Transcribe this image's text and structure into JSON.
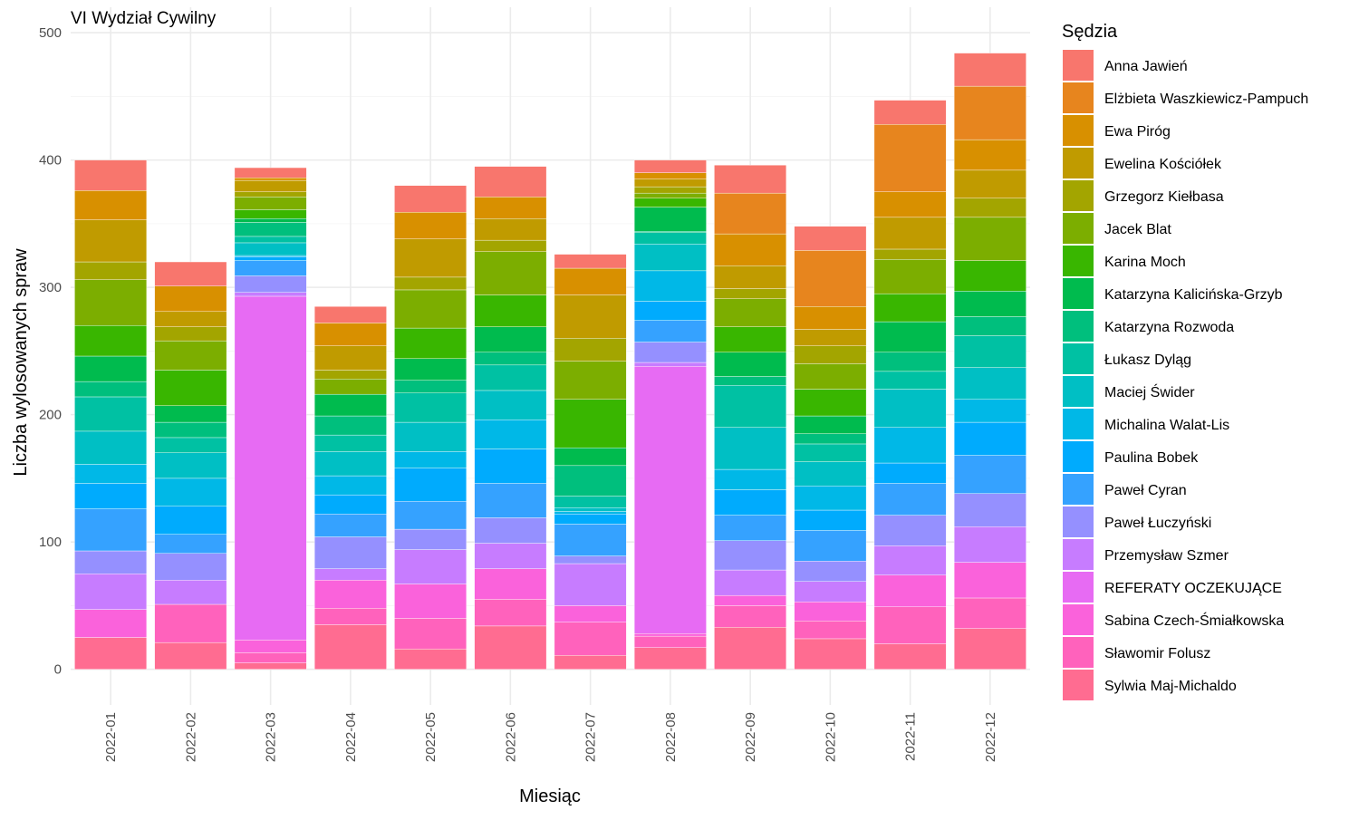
{
  "chart_data": {
    "type": "bar",
    "stacked": true,
    "title": "VI Wydział Cywilny",
    "xlabel": "Miesiąc",
    "ylabel": "Liczba wylosowanych spraw",
    "ylim": [
      -28,
      520
    ],
    "yticks": [
      0,
      100,
      200,
      300,
      400,
      500
    ],
    "grid": true,
    "legend_title": "Sędzia",
    "legend_position": "right",
    "categories": [
      "2022-01",
      "2022-02",
      "2022-03",
      "2022-04",
      "2022-05",
      "2022-06",
      "2022-07",
      "2022-08",
      "2022-09",
      "2022-10",
      "2022-11",
      "2022-12"
    ],
    "series": [
      {
        "name": "Anna Jawień",
        "color": "#F8766D",
        "values": [
          24,
          19,
          8,
          13,
          21,
          24,
          11,
          10,
          22,
          19,
          19,
          26
        ]
      },
      {
        "name": "Elżbieta Waszkiewicz-Pampuch",
        "color": "#E7851E",
        "values": [
          0,
          0,
          0,
          0,
          0,
          0,
          0,
          0,
          32,
          44,
          53,
          42
        ]
      },
      {
        "name": "Ewa Piróg",
        "color": "#D89000",
        "values": [
          23,
          20,
          2,
          18,
          21,
          17,
          21,
          5,
          25,
          18,
          20,
          24
        ]
      },
      {
        "name": "Ewelina Kościółek",
        "color": "#C09B00",
        "values": [
          33,
          12,
          9,
          19,
          30,
          17,
          34,
          6,
          18,
          13,
          25,
          22
        ]
      },
      {
        "name": "Grzegorz Kiełbasa",
        "color": "#A3A500",
        "values": [
          14,
          11,
          4,
          7,
          10,
          9,
          18,
          5,
          8,
          14,
          8,
          15
        ]
      },
      {
        "name": "Jacek Blat",
        "color": "#7CAE00",
        "values": [
          36,
          23,
          10,
          12,
          30,
          34,
          30,
          4,
          22,
          20,
          27,
          34
        ]
      },
      {
        "name": "Karina Moch",
        "color": "#39B600",
        "values": [
          24,
          28,
          7,
          0,
          24,
          25,
          38,
          7,
          20,
          21,
          22,
          24
        ]
      },
      {
        "name": "Katarzyna Kalicińska-Grzyb",
        "color": "#00BB4E",
        "values": [
          20,
          13,
          3,
          17,
          17,
          20,
          14,
          19,
          19,
          14,
          24,
          20
        ]
      },
      {
        "name": "Katarzyna Rozwoda",
        "color": "#00BF7D",
        "values": [
          12,
          12,
          11,
          15,
          10,
          10,
          24,
          1,
          7,
          8,
          15,
          15
        ]
      },
      {
        "name": "Łukasz Dyląg",
        "color": "#00C1A3",
        "values": [
          27,
          12,
          5,
          13,
          23,
          20,
          9,
          9,
          33,
          14,
          14,
          25
        ]
      },
      {
        "name": "Maciej Świder",
        "color": "#00BFC4",
        "values": [
          26,
          20,
          10,
          19,
          23,
          23,
          3,
          21,
          33,
          19,
          30,
          25
        ]
      },
      {
        "name": "Michalina Walat-Lis",
        "color": "#00B8E7",
        "values": [
          15,
          22,
          1,
          15,
          13,
          23,
          2,
          24,
          16,
          19,
          28,
          18
        ]
      },
      {
        "name": "Paulina Bobek",
        "color": "#00ABFD",
        "values": [
          20,
          22,
          3,
          15,
          26,
          27,
          8,
          15,
          20,
          16,
          16,
          26
        ]
      },
      {
        "name": "Paweł Cyran",
        "color": "#35A2FF",
        "values": [
          33,
          15,
          12,
          18,
          22,
          27,
          25,
          17,
          20,
          24,
          25,
          30
        ]
      },
      {
        "name": "Paweł Łuczyński",
        "color": "#9590FF",
        "values": [
          18,
          21,
          13,
          25,
          16,
          20,
          6,
          16,
          23,
          16,
          24,
          26
        ]
      },
      {
        "name": "Przemysław Szmer",
        "color": "#C77CFF",
        "values": [
          28,
          19,
          3,
          9,
          27,
          20,
          33,
          3,
          20,
          16,
          23,
          28
        ]
      },
      {
        "name": "REFERATY OCZEKUJĄCE",
        "color": "#E76BF3",
        "values": [
          0,
          0,
          270,
          0,
          0,
          0,
          0,
          210,
          0,
          0,
          0,
          0
        ]
      },
      {
        "name": "Sabina Czech-Śmiałkowska",
        "color": "#FA62DB",
        "values": [
          22,
          0,
          10,
          22,
          27,
          24,
          13,
          2,
          8,
          15,
          25,
          28
        ]
      },
      {
        "name": "Sławomir Folusz",
        "color": "#FF62BC",
        "values": [
          0,
          30,
          8,
          13,
          24,
          21,
          26,
          9,
          17,
          14,
          29,
          24
        ]
      },
      {
        "name": "Sylwia Maj-Michaldo",
        "color": "#FF6C91",
        "values": [
          25,
          21,
          5,
          35,
          16,
          34,
          11,
          17,
          33,
          24,
          20,
          32
        ]
      }
    ]
  }
}
